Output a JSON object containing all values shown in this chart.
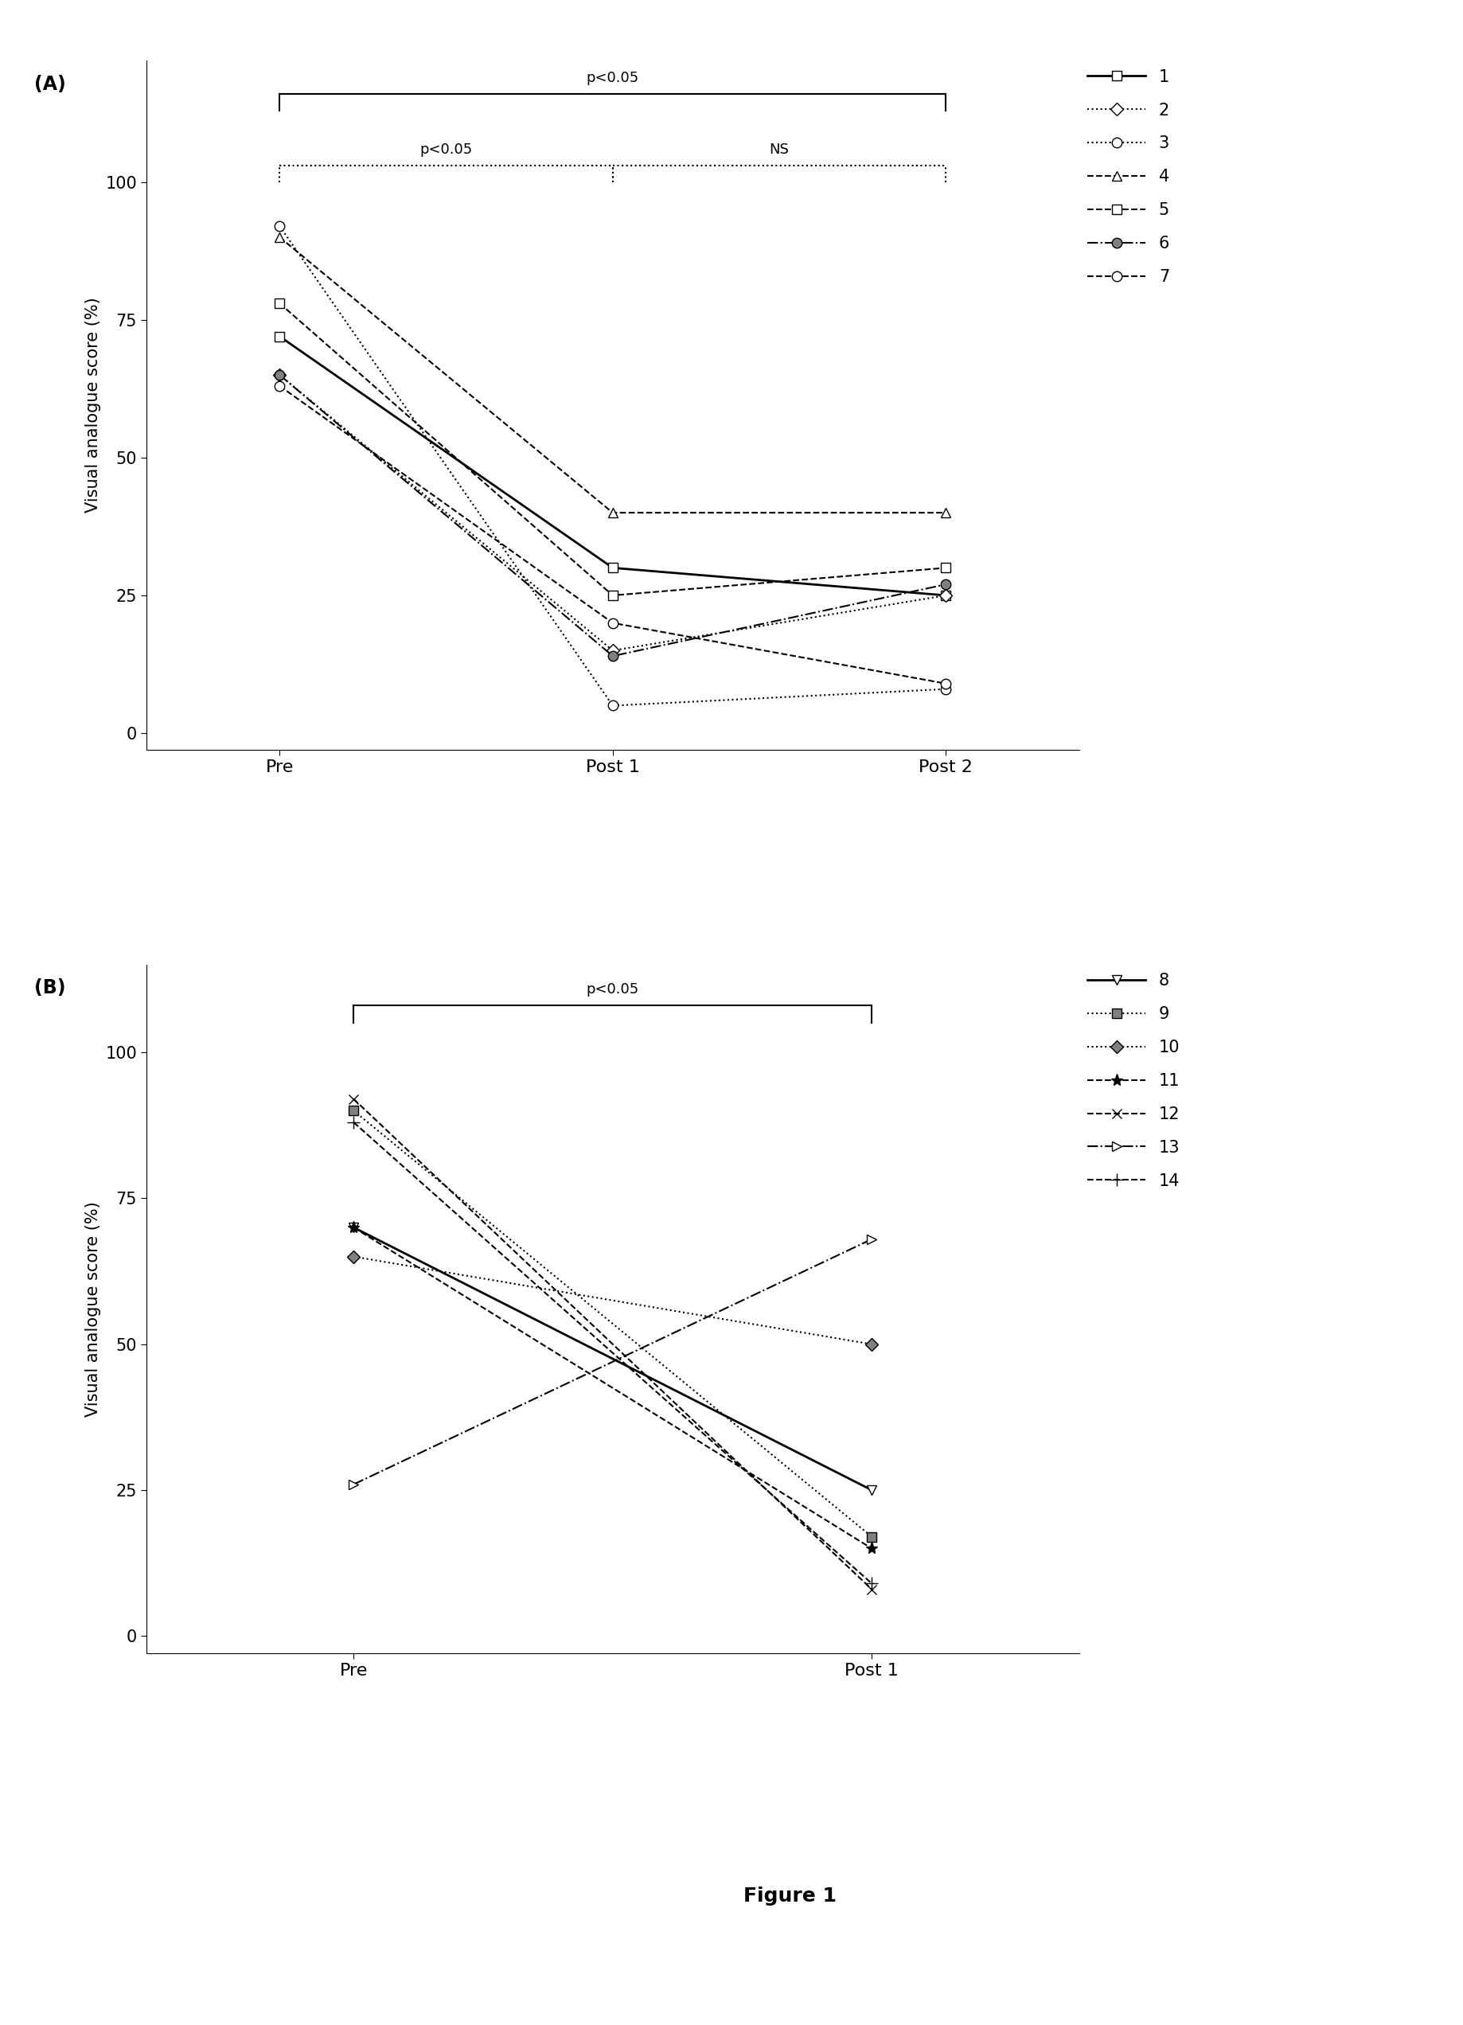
{
  "panel_A": {
    "series": [
      {
        "label": "1",
        "pre": 72,
        "post1": 30,
        "post2": 25,
        "linestyle": "-",
        "marker": "s",
        "mfc": "white",
        "lw": 2.0,
        "ms": 9
      },
      {
        "label": "2",
        "pre": 65,
        "post1": 15,
        "post2": 25,
        "linestyle": ":",
        "marker": "D",
        "mfc": "white",
        "lw": 1.5,
        "ms": 8
      },
      {
        "label": "3",
        "pre": 92,
        "post1": 5,
        "post2": 8,
        "linestyle": ":",
        "marker": "o",
        "mfc": "white",
        "lw": 1.5,
        "ms": 9
      },
      {
        "label": "4",
        "pre": 90,
        "post1": 40,
        "post2": 40,
        "linestyle": "--",
        "marker": "^",
        "mfc": "white",
        "lw": 1.5,
        "ms": 9
      },
      {
        "label": "5",
        "pre": 78,
        "post1": 25,
        "post2": 30,
        "linestyle": "--",
        "marker": "s",
        "mfc": "white",
        "lw": 1.5,
        "ms": 9
      },
      {
        "label": "6",
        "pre": 65,
        "post1": 14,
        "post2": 27,
        "linestyle": "-.",
        "marker": "o",
        "mfc": "gray",
        "lw": 1.5,
        "ms": 9
      },
      {
        "label": "7",
        "pre": 63,
        "post1": 20,
        "post2": 9,
        "linestyle": "--",
        "marker": "o",
        "mfc": "white",
        "lw": 1.5,
        "ms": 9
      }
    ],
    "xticks": [
      "Pre",
      "Post 1",
      "Post 2"
    ],
    "ylabel": "Visual analogue score (%)",
    "yticks": [
      0,
      25,
      50,
      75,
      100
    ],
    "panel_label": "(A)"
  },
  "panel_B": {
    "series": [
      {
        "label": "8",
        "pre": 70,
        "post1": 25,
        "linestyle": "-",
        "marker": "v",
        "mfc": "white",
        "lw": 2.0,
        "ms": 9
      },
      {
        "label": "9",
        "pre": 90,
        "post1": 17,
        "linestyle": ":",
        "marker": "s",
        "mfc": "gray",
        "lw": 1.5,
        "ms": 9
      },
      {
        "label": "10",
        "pre": 65,
        "post1": 50,
        "linestyle": ":",
        "marker": "D",
        "mfc": "gray",
        "lw": 1.5,
        "ms": 8
      },
      {
        "label": "11",
        "pre": 70,
        "post1": 15,
        "linestyle": "--",
        "marker": "*",
        "mfc": "black",
        "lw": 1.5,
        "ms": 11
      },
      {
        "label": "12",
        "pre": 92,
        "post1": 8,
        "linestyle": "--",
        "marker": "x",
        "mfc": "black",
        "lw": 1.5,
        "ms": 9
      },
      {
        "label": "13",
        "pre": 26,
        "post1": 68,
        "linestyle": "-.",
        "marker": ">",
        "mfc": "white",
        "lw": 1.5,
        "ms": 9
      },
      {
        "label": "14",
        "pre": 88,
        "post1": 9,
        "linestyle": "--",
        "marker": "+",
        "mfc": "black",
        "lw": 1.5,
        "ms": 11
      }
    ],
    "xticks": [
      "Pre",
      "Post 1"
    ],
    "ylabel": "Visual analogue score (%)",
    "yticks": [
      0,
      25,
      50,
      75,
      100
    ],
    "panel_label": "(B)"
  },
  "figure_title": "Figure 1"
}
